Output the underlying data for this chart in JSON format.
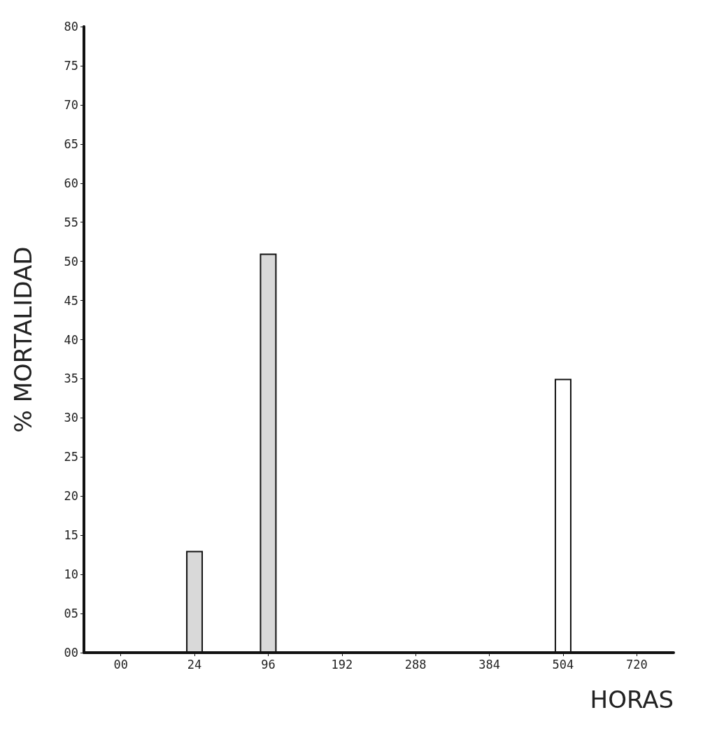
{
  "chart_data": {
    "type": "bar",
    "xlabel": "HORAS",
    "ylabel": "% MORTALIDAD",
    "categories": [
      "00",
      "24",
      "96",
      "192",
      "288",
      "384",
      "504",
      "720"
    ],
    "values": [
      null,
      13,
      51,
      null,
      null,
      null,
      35,
      null
    ],
    "colors": [
      "#d9d9d9",
      "#d9d9d9",
      "#d9d9d9",
      "#d9d9d9",
      "#d9d9d9",
      "#d9d9d9",
      "#ffffff",
      "#d9d9d9"
    ],
    "ylim": [
      0,
      80
    ],
    "yticks": [
      {
        "value": 0,
        "label": "00"
      },
      {
        "value": 5,
        "label": "05"
      },
      10,
      15,
      20,
      25,
      30,
      35,
      40,
      45,
      50,
      55,
      60,
      65,
      70,
      75,
      80
    ],
    "grid": false
  }
}
